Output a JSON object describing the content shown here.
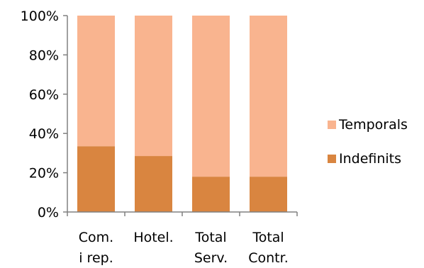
{
  "chart_data": {
    "type": "bar",
    "stacked": true,
    "percent": true,
    "categories": [
      [
        "Com.",
        "i rep."
      ],
      [
        "Hotel."
      ],
      [
        "Total",
        "Serv."
      ],
      [
        "Total",
        "Contr."
      ]
    ],
    "series": [
      {
        "name": "Indefinits",
        "color": "#d98540",
        "values": [
          33.5,
          28.5,
          18,
          18
        ]
      },
      {
        "name": "Temporals",
        "color": "#f9b48f",
        "values": [
          66.5,
          71.5,
          82,
          82
        ]
      }
    ],
    "ylim": [
      0,
      100
    ],
    "yticks": [
      "0%",
      "20%",
      "40%",
      "60%",
      "80%",
      "100%"
    ],
    "xlabel": "",
    "ylabel": "",
    "title": "",
    "grid": false,
    "legend_position": "right"
  },
  "legend": {
    "items": [
      {
        "label": "Temporals",
        "color": "#f9b48f"
      },
      {
        "label": "Indefinits",
        "color": "#d98540"
      }
    ]
  }
}
